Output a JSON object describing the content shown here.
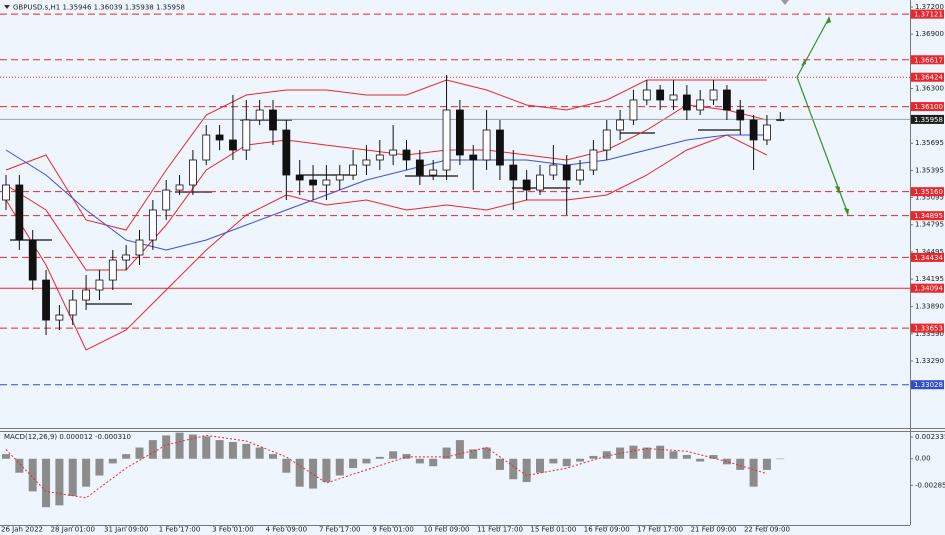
{
  "chart_data": {
    "type": "candlestick",
    "title": "GBPUSD.s,H1 1.35946 1.36039 1.35938 1.35958",
    "categories": [
      null,
      "26 Jan 2022",
      null,
      null,
      null,
      "28 Jan 01:00",
      null,
      null,
      null,
      "31 Jan 09:00",
      null,
      null,
      null,
      "1 Feb 17:00",
      null,
      null,
      null,
      "3 Feb 01:00",
      null,
      null,
      null,
      "4 Feb 09:00",
      null,
      null,
      null,
      "7 Feb 17:00",
      null,
      null,
      null,
      "9 Feb 01:00",
      null,
      null,
      null,
      "10 Feb 09:00",
      null,
      null,
      null,
      "11 Feb 17:00",
      null,
      null,
      null,
      "15 Feb 01:00",
      null,
      null,
      null,
      "16 Feb 09:00",
      null,
      null,
      null,
      "17 Feb 17:00",
      null,
      null,
      null,
      "21 Feb 09:00",
      null,
      null,
      null,
      "22 Feb 09:00",
      null
    ],
    "candles": [
      [
        1.35068,
        1.35344,
        1.34958,
        1.35234
      ],
      [
        1.35234,
        1.35344,
        1.34516,
        1.34626
      ],
      [
        1.34626,
        1.34737,
        1.34074,
        1.34184
      ],
      [
        1.34184,
        1.34295,
        1.33577,
        1.33742
      ],
      [
        1.33742,
        1.33908,
        1.33632,
        1.33798
      ],
      [
        1.33798,
        1.34074,
        1.33687,
        1.33963
      ],
      [
        1.33963,
        1.3424,
        1.33853,
        1.34074
      ],
      [
        1.34074,
        1.34295,
        1.33963,
        1.34184
      ],
      [
        1.34184,
        1.34516,
        1.34074,
        1.34405
      ],
      [
        1.34405,
        1.34571,
        1.34295,
        1.34461
      ],
      [
        1.34461,
        1.34737,
        1.3435,
        1.34626
      ],
      [
        1.34626,
        1.35068,
        1.34516,
        1.34958
      ],
      [
        1.34958,
        1.35289,
        1.34847,
        1.35178
      ],
      [
        1.35178,
        1.35344,
        1.35123,
        1.35234
      ],
      [
        1.35234,
        1.3562,
        1.35123,
        1.3551
      ],
      [
        1.3551,
        1.35896,
        1.35454,
        1.35786
      ],
      [
        1.35786,
        1.35896,
        1.3562,
        1.35731
      ],
      [
        1.35731,
        1.36228,
        1.3551,
        1.3562
      ],
      [
        1.3562,
        1.36173,
        1.3551,
        1.35952
      ],
      [
        1.35952,
        1.36173,
        1.35896,
        1.36062
      ],
      [
        1.36062,
        1.36173,
        1.35675,
        1.35841
      ],
      [
        1.35841,
        1.35952,
        1.35068,
        1.35344
      ],
      [
        1.35344,
        1.3551,
        1.35123,
        1.35289
      ],
      [
        1.35289,
        1.35454,
        1.35068,
        1.35234
      ],
      [
        1.35234,
        1.35454,
        1.35068,
        1.35289
      ],
      [
        1.35289,
        1.35454,
        1.35178,
        1.35344
      ],
      [
        1.35344,
        1.3562,
        1.35289,
        1.35454
      ],
      [
        1.35454,
        1.35675,
        1.35344,
        1.3551
      ],
      [
        1.3551,
        1.35731,
        1.35399,
        1.35565
      ],
      [
        1.35565,
        1.35896,
        1.35454,
        1.3562
      ],
      [
        1.3562,
        1.35731,
        1.35399,
        1.3551
      ],
      [
        1.3551,
        1.3562,
        1.35234,
        1.35344
      ],
      [
        1.35344,
        1.3551,
        1.35289,
        1.35399
      ],
      [
        1.35399,
        1.36449,
        1.35289,
        1.36062
      ],
      [
        1.36062,
        1.36173,
        1.35454,
        1.35565
      ],
      [
        1.35565,
        1.35675,
        1.35178,
        1.3551
      ],
      [
        1.3551,
        1.36062,
        1.35399,
        1.35841
      ],
      [
        1.35841,
        1.35952,
        1.35289,
        1.35454
      ],
      [
        1.35454,
        1.3562,
        1.34958,
        1.35289
      ],
      [
        1.35289,
        1.35399,
        1.35068,
        1.35178
      ],
      [
        1.35178,
        1.35454,
        1.35123,
        1.35344
      ],
      [
        1.35344,
        1.35675,
        1.35289,
        1.35454
      ],
      [
        1.35454,
        1.35565,
        1.34902,
        1.35289
      ],
      [
        1.35289,
        1.3551,
        1.35234,
        1.35399
      ],
      [
        1.35399,
        1.35731,
        1.35344,
        1.3562
      ],
      [
        1.3562,
        1.35952,
        1.3551,
        1.35841
      ],
      [
        1.35841,
        1.36062,
        1.35731,
        1.35952
      ],
      [
        1.35952,
        1.36283,
        1.35896,
        1.36173
      ],
      [
        1.36173,
        1.36393,
        1.36117,
        1.36283
      ],
      [
        1.36283,
        1.36338,
        1.36062,
        1.36173
      ],
      [
        1.36173,
        1.36393,
        1.36062,
        1.36228
      ],
      [
        1.36228,
        1.36338,
        1.35952,
        1.36062
      ],
      [
        1.36062,
        1.36283,
        1.36007,
        1.36173
      ],
      [
        1.36173,
        1.36393,
        1.36117,
        1.36283
      ],
      [
        1.36283,
        1.36338,
        1.35952,
        1.36062
      ],
      [
        1.36062,
        1.36173,
        1.35786,
        1.35952
      ],
      [
        1.35952,
        1.36007,
        1.35399,
        1.35731
      ],
      [
        1.35731,
        1.36007,
        1.35675,
        1.35896
      ],
      [
        1.35946,
        1.36039,
        1.35938,
        1.35958
      ]
    ],
    "lines": [
      {
        "color": "#e8262b",
        "x": [
          0,
          3,
          6,
          9,
          12,
          15,
          18,
          21,
          24,
          27,
          30,
          33,
          36,
          39,
          42,
          45,
          48,
          51,
          54,
          57
        ],
        "values": [
          1.35399,
          1.35565,
          1.34847,
          1.34737,
          1.35399,
          1.36007,
          1.36228,
          1.36283,
          1.36283,
          1.36228,
          1.36228,
          1.36393,
          1.36283,
          1.36117,
          1.36062,
          1.36173,
          1.36393,
          1.36393,
          1.36393,
          1.36393
        ]
      },
      {
        "color": "#e8262b",
        "x": [
          0,
          3,
          6,
          9,
          12,
          15,
          18,
          21,
          24,
          27,
          30,
          33,
          36,
          39,
          42,
          45,
          48,
          51,
          54,
          57
        ],
        "values": [
          1.35234,
          1.34958,
          1.34295,
          1.34295,
          1.34792,
          1.35399,
          1.35675,
          1.35731,
          1.35675,
          1.3562,
          1.35565,
          1.3562,
          1.3562,
          1.35565,
          1.3551,
          1.3562,
          1.35841,
          1.36117,
          1.36062,
          1.35952
        ]
      },
      {
        "color": "#e8262b",
        "x": [
          0,
          3,
          6,
          9,
          12,
          15,
          18,
          21,
          24,
          27,
          30,
          33,
          36,
          39,
          42,
          45,
          48,
          51,
          54,
          57
        ],
        "values": [
          1.35068,
          1.3435,
          1.33411,
          1.33632,
          1.34074,
          1.34516,
          1.34902,
          1.35123,
          1.35013,
          1.35068,
          1.34958,
          1.35013,
          1.34958,
          1.35068,
          1.35068,
          1.35123,
          1.35344,
          1.3562,
          1.35786,
          1.35565
        ]
      },
      {
        "color": "#3d4fd1",
        "x": [
          0,
          3,
          6,
          9,
          12,
          15,
          18,
          21,
          24,
          27,
          30,
          33,
          36,
          39,
          42,
          45,
          48,
          51,
          54,
          57
        ],
        "values": [
          1.3562,
          1.35344,
          1.34958,
          1.34626,
          1.34516,
          1.34626,
          1.34792,
          1.34958,
          1.35123,
          1.35289,
          1.35399,
          1.3551,
          1.3551,
          1.3551,
          1.35454,
          1.3551,
          1.3562,
          1.35731,
          1.35786,
          1.35786
        ]
      }
    ],
    "levels": [
      {
        "value": 1.37121,
        "color": "#e8262b",
        "style": "dash"
      },
      {
        "value": 1.36617,
        "color": "#e8262b",
        "style": "dash"
      },
      {
        "value": 1.36424,
        "color": "#e8262b",
        "style": "dot"
      },
      {
        "value": 1.361,
        "label": "1.36100",
        "color": "#e8262b",
        "style": "dash"
      },
      {
        "value": 1.35958,
        "color": "#1e1e1e",
        "style": "current"
      },
      {
        "value": 1.3516,
        "label": "1.35160",
        "color": "#e8262b",
        "style": "dash"
      },
      {
        "value": 1.34895,
        "color": "#e8262b",
        "style": "dash"
      },
      {
        "value": 1.34434,
        "color": "#e8262b",
        "style": "dash"
      },
      {
        "value": 1.34094,
        "color": "#e8262b",
        "style": "solid"
      },
      {
        "value": 1.33653,
        "color": "#e8262b",
        "style": "dash"
      },
      {
        "value": 1.33028,
        "color": "#2f4dcc",
        "style": "dash"
      }
    ],
    "ylim": [
      1.3255,
      1.37277
    ],
    "yticks": [
      {
        "value": 1.372,
        "label": "1.37200"
      },
      {
        "value": 1.369,
        "label": "1.36900"
      },
      {
        "value": 1.363,
        "label": "1.36300"
      },
      1.35695,
      1.35395,
      1.35095,
      1.34795,
      1.34495,
      1.34195,
      {
        "value": 1.3389,
        "label": "1.33890"
      },
      {
        "value": 1.3359,
        "label": "1.33590"
      },
      {
        "value": 1.3329,
        "label": "1.33290"
      }
    ],
    "macd": {
      "title": "MACD(12,26,9) 0.000012 -0.000310",
      "bar_color": "#8c8c8c",
      "signal_color": "#e8262b",
      "histogram": [
        0.0005,
        -0.0015,
        -0.0035,
        -0.0052,
        -0.005,
        -0.004,
        -0.003,
        -0.0018,
        -0.0005,
        0.0005,
        0.0012,
        0.002,
        0.0025,
        0.0028,
        0.0026,
        0.0024,
        0.002,
        0.0018,
        0.0016,
        0.0012,
        0.0005,
        -0.0015,
        -0.003,
        -0.0032,
        -0.0025,
        -0.0018,
        -0.001,
        -0.0005,
        0.0002,
        0.0008,
        0.0005,
        -0.0005,
        -0.0008,
        0.0012,
        0.002,
        0.001,
        0.0012,
        -0.0012,
        -0.0022,
        -0.0025,
        -0.0015,
        -0.0005,
        -0.0008,
        -0.0003,
        0.0003,
        0.0008,
        0.0012,
        0.0014,
        0.0012,
        0.0014,
        0.0008,
        0.0004,
        -0.0003,
        0.0004,
        -0.0006,
        -0.0012,
        -0.003,
        -0.0012,
        1.2e-05
      ],
      "signal_x": [
        0,
        3,
        6,
        9,
        12,
        15,
        18,
        21,
        24,
        27,
        30,
        33,
        36,
        39,
        42,
        45,
        48,
        51,
        54,
        57
      ],
      "signal": [
        0.001,
        -0.0035,
        -0.0042,
        -0.001,
        0.0015,
        0.0025,
        0.0019,
        0.0002,
        -0.0026,
        -0.0012,
        0.0002,
        0.0002,
        0.0012,
        -0.0018,
        -0.001,
        0.0003,
        0.0011,
        0.0008,
        -0.0003,
        -0.0016
      ],
      "ylim": [
        -0.00711,
        0.00287
      ],
      "yticks": [
        0.002335,
        {
          "value": 0,
          "label": "0.00"
        },
        -0.002857
      ]
    }
  }
}
